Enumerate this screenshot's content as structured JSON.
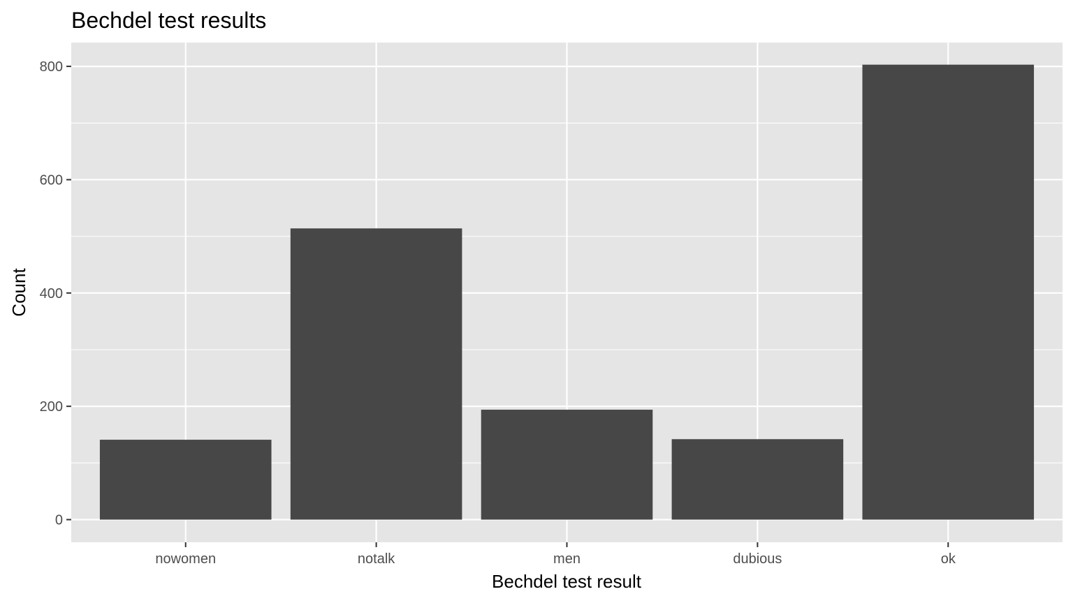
{
  "chart_data": {
    "type": "bar",
    "title": "Bechdel test results",
    "xlabel": "Bechdel test result",
    "ylabel": "Count",
    "categories": [
      "nowomen",
      "notalk",
      "men",
      "dubious",
      "ok"
    ],
    "values": [
      141,
      514,
      194,
      142,
      803
    ],
    "ylim": [
      -40,
      842
    ],
    "yticks": [
      0,
      200,
      400,
      600,
      800
    ],
    "grid": true,
    "legend": "none",
    "colors": {
      "bar": "#474747",
      "panel": "#e5e5e5",
      "grid": "#ffffff",
      "tick_label": "#4d4d4d"
    }
  }
}
